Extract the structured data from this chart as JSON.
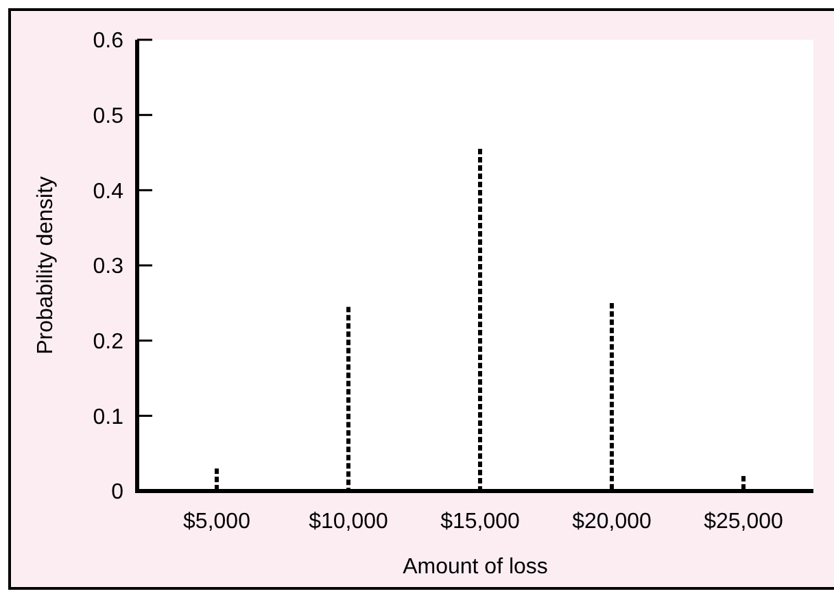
{
  "chart_data": {
    "type": "bar",
    "xlabel": "Amount of loss",
    "ylabel": "Probability density",
    "categories": [
      "$5,000",
      "$10,000",
      "$15,000",
      "$20,000",
      "$25,000"
    ],
    "values": [
      0.03,
      0.245,
      0.455,
      0.25,
      0.02
    ],
    "color": "#000000",
    "line_style": "dashed",
    "ylim": [
      0,
      0.6
    ],
    "yticks": [
      0,
      0.1,
      0.2,
      0.3,
      0.4,
      0.5,
      0.6
    ],
    "grid": false
  }
}
